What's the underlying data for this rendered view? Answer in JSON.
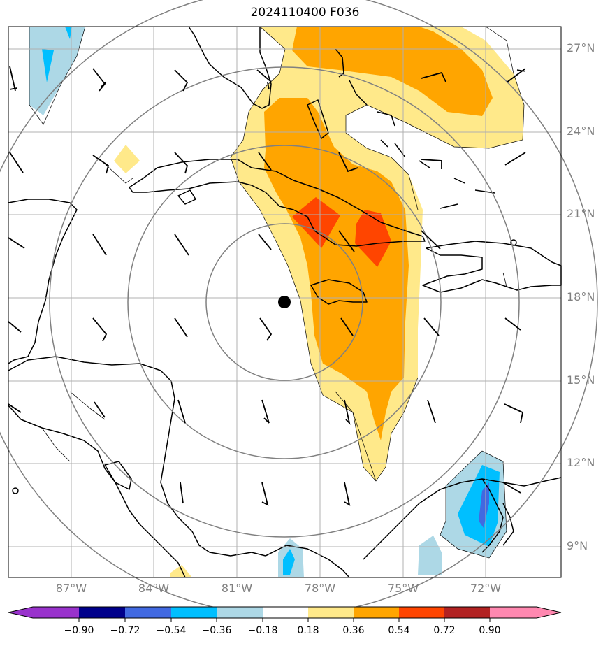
{
  "title": "2024110400 F036",
  "lat_labels": [
    "27°N",
    "24°N",
    "21°N",
    "18°N",
    "15°N",
    "12°N",
    "9°N"
  ],
  "lon_labels": [
    "87°W",
    "84°W",
    "81°W",
    "78°W",
    "75°W",
    "72°W"
  ],
  "colorbar": {
    "ticks": [
      "−0.90",
      "−0.72",
      "−0.54",
      "−0.36",
      "−0.18",
      "0.18",
      "0.36",
      "0.54",
      "0.72",
      "0.90"
    ],
    "colors": [
      "#9932cc",
      "#00008b",
      "#4169e1",
      "#00bfff",
      "#add8e6",
      "#ffffff",
      "#ffe98a",
      "#ffa500",
      "#ff4500",
      "#b22222",
      "#ff88b0"
    ]
  },
  "storm_center": {
    "lat": 17.8,
    "lon": 79.2
  },
  "field_colors": {
    "pos_018": "#ffe98a",
    "pos_036": "#ffa500",
    "pos_054": "#ff4500",
    "neg_018": "#add8e6",
    "neg_036": "#00bfff",
    "neg_054": "#4169e1"
  }
}
